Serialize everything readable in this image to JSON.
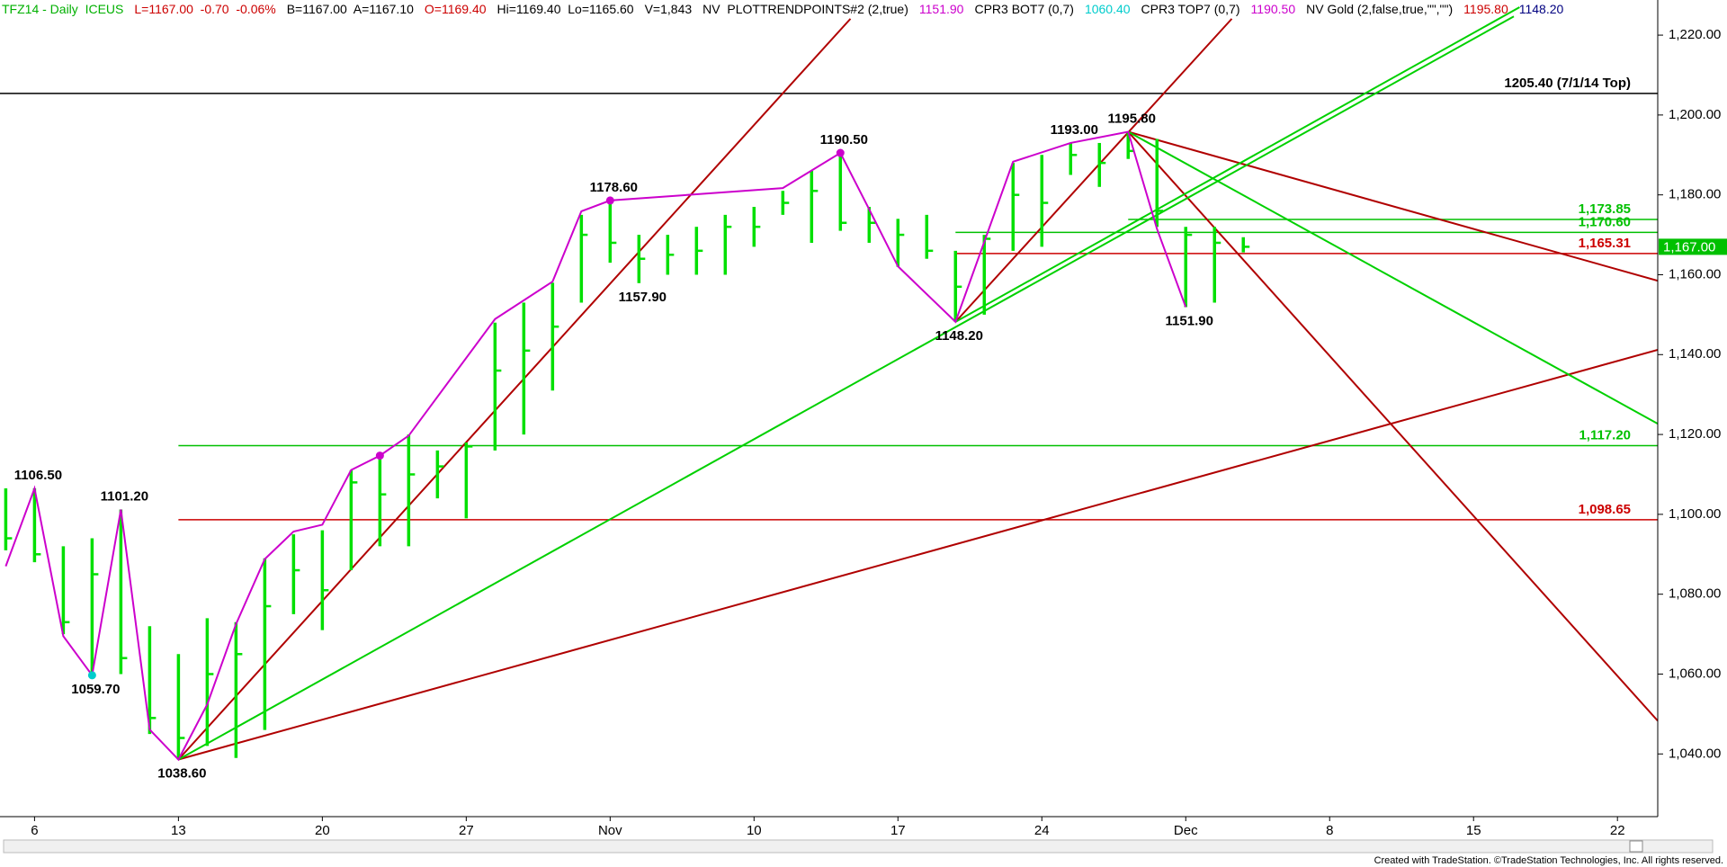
{
  "chart_data": {
    "type": "ohlc",
    "header": [
      {
        "text": "TFZ14 - Daily  ICEUS",
        "color": "#00b000"
      },
      {
        "text": "L=1167.00  -0.70  -0.06%",
        "color": "#cc0000"
      },
      {
        "text": "B=1167.00  A=1167.10",
        "color": "#000000"
      },
      {
        "text": "O=1169.40",
        "color": "#cc0000"
      },
      {
        "text": "Hi=1169.40  Lo=1165.60",
        "color": "#000000"
      },
      {
        "text": "V=1,843",
        "color": "#000000"
      },
      {
        "text": "NV  PLOTTRENDPOINTS#2 (2,true)",
        "color": "#000000"
      },
      {
        "text": "1151.90",
        "color": "#cc00cc"
      },
      {
        "text": "CPR3 BOT7 (0,7)",
        "color": "#000000"
      },
      {
        "text": "1060.40",
        "color": "#00cccc"
      },
      {
        "text": "CPR3 TOP7 (0,7)",
        "color": "#000000"
      },
      {
        "text": "1190.50",
        "color": "#cc00cc"
      },
      {
        "text": "NV Gold (2,false,true,\"\",\"\")",
        "color": "#000000"
      },
      {
        "text": "1195.80",
        "color": "#cc0000"
      },
      {
        "text": "1148.20",
        "color": "#000080"
      }
    ],
    "footer": "Created with TradeStation. ©TradeStation Technologies, Inc. All rights reserved.",
    "xlim": [
      -0.2,
      57.4
    ],
    "xticks": [
      {
        "value": 1,
        "label": "6"
      },
      {
        "value": 6,
        "label": "13"
      },
      {
        "value": 11,
        "label": "20"
      },
      {
        "value": 16,
        "label": "27"
      },
      {
        "value": 21,
        "label": "Nov"
      },
      {
        "value": 26,
        "label": "10"
      },
      {
        "value": 31,
        "label": "17"
      },
      {
        "value": 36,
        "label": "24"
      },
      {
        "value": 41,
        "label": "Dec"
      },
      {
        "value": 46,
        "label": "8"
      },
      {
        "value": 51,
        "label": "15"
      },
      {
        "value": 56,
        "label": "22"
      }
    ],
    "ylim": [
      1024.3,
      1228.8
    ],
    "yticks": [
      {
        "value": 1040,
        "label": "1,040.00"
      },
      {
        "value": 1060,
        "label": "1,060.00"
      },
      {
        "value": 1080,
        "label": "1,080.00"
      },
      {
        "value": 1100,
        "label": "1,100.00"
      },
      {
        "value": 1120,
        "label": "1,120.00"
      },
      {
        "value": 1140,
        "label": "1,140.00"
      },
      {
        "value": 1160,
        "label": "1,160.00"
      },
      {
        "value": 1180,
        "label": "1,180.00"
      },
      {
        "value": 1200,
        "label": "1,200.00"
      },
      {
        "value": 1220,
        "label": "1,220.00"
      }
    ],
    "bar_color": "#00e000",
    "bars": {
      "x": [
        0,
        1,
        2,
        3,
        4,
        5,
        6,
        7,
        8,
        9,
        10,
        11,
        12,
        13,
        14,
        15,
        16,
        17,
        18,
        19,
        20,
        21,
        22,
        23,
        24,
        25,
        26,
        27,
        28,
        29,
        30,
        31,
        32,
        33,
        34,
        35,
        36,
        37,
        38,
        39,
        40,
        41,
        42,
        43
      ],
      "high": [
        1106.5,
        1106.5,
        1092,
        1094,
        1101.2,
        1072,
        1065,
        1074,
        1073,
        1089,
        1095,
        1096,
        1111,
        1114,
        1120,
        1116,
        1118,
        1148,
        1153,
        1158,
        1175,
        1178.6,
        1170,
        1170,
        1172,
        1175,
        1177,
        1181,
        1186,
        1190.5,
        1177,
        1174,
        1175,
        1166,
        1170,
        1188,
        1190,
        1193,
        1193,
        1195.8,
        1194,
        1172,
        1172,
        1169.4
      ],
      "low": [
        1091,
        1088,
        1070,
        1059.7,
        1060,
        1045,
        1038.6,
        1042,
        1039,
        1046,
        1075,
        1071,
        1086,
        1092,
        1092,
        1104,
        1099,
        1116,
        1120,
        1131,
        1153,
        1163,
        1157.9,
        1160,
        1160,
        1160,
        1167,
        1175,
        1168,
        1171,
        1168,
        1162,
        1164,
        1148.2,
        1150,
        1166,
        1167,
        1185,
        1182,
        1189,
        1172,
        1151.9,
        1153,
        1165.6
      ],
      "close": [
        1094,
        1090,
        1073,
        1085,
        1064,
        1049,
        1044,
        1060,
        1065,
        1077,
        1086,
        1081,
        1108,
        1105,
        1110,
        1112,
        1117,
        1136,
        1141,
        1147,
        1170,
        1168,
        1164,
        1165,
        1166,
        1172,
        1172,
        1178,
        1181,
        1173,
        1173,
        1170,
        1166,
        1157,
        1169,
        1180,
        1178,
        1190,
        1188,
        1191,
        1176,
        1170,
        1168,
        1167
      ]
    },
    "swing_line": {
      "color": "#cc00cc",
      "x": [
        0,
        1,
        2,
        3,
        4,
        5,
        6,
        7,
        8,
        9,
        10,
        11,
        12,
        13,
        14,
        17,
        19,
        20,
        21,
        27,
        29,
        30,
        31,
        33,
        35,
        37,
        39,
        40,
        41
      ],
      "values": [
        1087,
        1106.5,
        1069.5,
        1059.7,
        1101.2,
        1046.1,
        1038.6,
        1052.4,
        1072.5,
        1088.8,
        1095.7,
        1097.4,
        1111.1,
        1114.7,
        1119.7,
        1148.9,
        1158.3,
        1175.9,
        1178.6,
        1181.7,
        1190.5,
        1176.4,
        1162.1,
        1148.2,
        1188.3,
        1193,
        1195.8,
        1171.5,
        1151.9
      ]
    },
    "dots": [
      {
        "x": 3,
        "value": 1059.7,
        "color": "#00cccc"
      },
      {
        "x": 13,
        "value": 1114.7,
        "color": "#cc00cc"
      },
      {
        "x": 21,
        "value": 1178.6,
        "color": "#cc00cc"
      },
      {
        "x": 29,
        "value": 1190.5,
        "color": "#cc00cc"
      }
    ],
    "pivots": [
      {
        "x": 1,
        "value": 1106.5,
        "label": "1106.50",
        "position": "above"
      },
      {
        "x": 4,
        "value": 1101.2,
        "label": "1101.20",
        "position": "above"
      },
      {
        "x": 3,
        "value": 1059.7,
        "label": "1059.70",
        "position": "below"
      },
      {
        "x": 6,
        "value": 1038.6,
        "label": "1038.60",
        "position": "below"
      },
      {
        "x": 21,
        "value": 1178.6,
        "label": "1178.60",
        "position": "above"
      },
      {
        "x": 22,
        "value": 1157.9,
        "label": "1157.90",
        "position": "below"
      },
      {
        "x": 29,
        "value": 1190.5,
        "label": "1190.50",
        "position": "above"
      },
      {
        "x": 33,
        "value": 1148.2,
        "label": "1148.20",
        "position": "below"
      },
      {
        "x": 37,
        "value": 1193,
        "label": "1193.00",
        "position": "above"
      },
      {
        "x": 39,
        "value": 1195.8,
        "label": "1195.80",
        "position": "above"
      },
      {
        "x": 41,
        "value": 1151.9,
        "label": "1151.90",
        "position": "below"
      }
    ],
    "trendlines": [
      {
        "color": "#b00000",
        "x": [
          6,
          29.35
        ],
        "values": [
          1038.6,
          1224.1
        ]
      },
      {
        "color": "#b00000",
        "x": [
          33,
          42.6
        ],
        "values": [
          1148.2,
          1224.1
        ]
      },
      {
        "color": "#b00000",
        "x": [
          39,
          57.4
        ],
        "values": [
          1195.8,
          1048.3
        ]
      },
      {
        "color": "#b00000",
        "x": [
          39,
          57.4
        ],
        "values": [
          1195.8,
          1158.5
        ]
      },
      {
        "color": "#b00000",
        "x": [
          6,
          57.4
        ],
        "values": [
          1038.6,
          1141.2
        ]
      },
      {
        "color": "#00d000",
        "x": [
          6,
          52.4
        ],
        "values": [
          1038.6,
          1224.7
        ]
      },
      {
        "color": "#00d000",
        "x": [
          33,
          52.6
        ],
        "values": [
          1148.2,
          1227
        ]
      },
      {
        "color": "#00d000",
        "x": [
          39,
          57.4
        ],
        "values": [
          1195.8,
          1122.7
        ]
      }
    ],
    "levels": [
      {
        "value": 1205.4,
        "label": "1205.40 (7/1/14 Top)",
        "color": "#000000",
        "from": -0.2
      },
      {
        "value": 1173.85,
        "label": "1,173.85",
        "color": "#00c000",
        "from": 39
      },
      {
        "value": 1170.6,
        "label": "1,170.60",
        "color": "#00c000",
        "from": 33
      },
      {
        "value": 1165.31,
        "label": "1,165.31",
        "color": "#cc0000",
        "from": 33
      },
      {
        "value": 1117.2,
        "label": "1,117.20",
        "color": "#00c000",
        "from": 6
      },
      {
        "value": 1098.65,
        "label": "1,098.65",
        "color": "#cc0000",
        "from": 6
      }
    ],
    "last_price": {
      "value": 1167,
      "label": "1,167.00",
      "color": "#00c000"
    }
  }
}
